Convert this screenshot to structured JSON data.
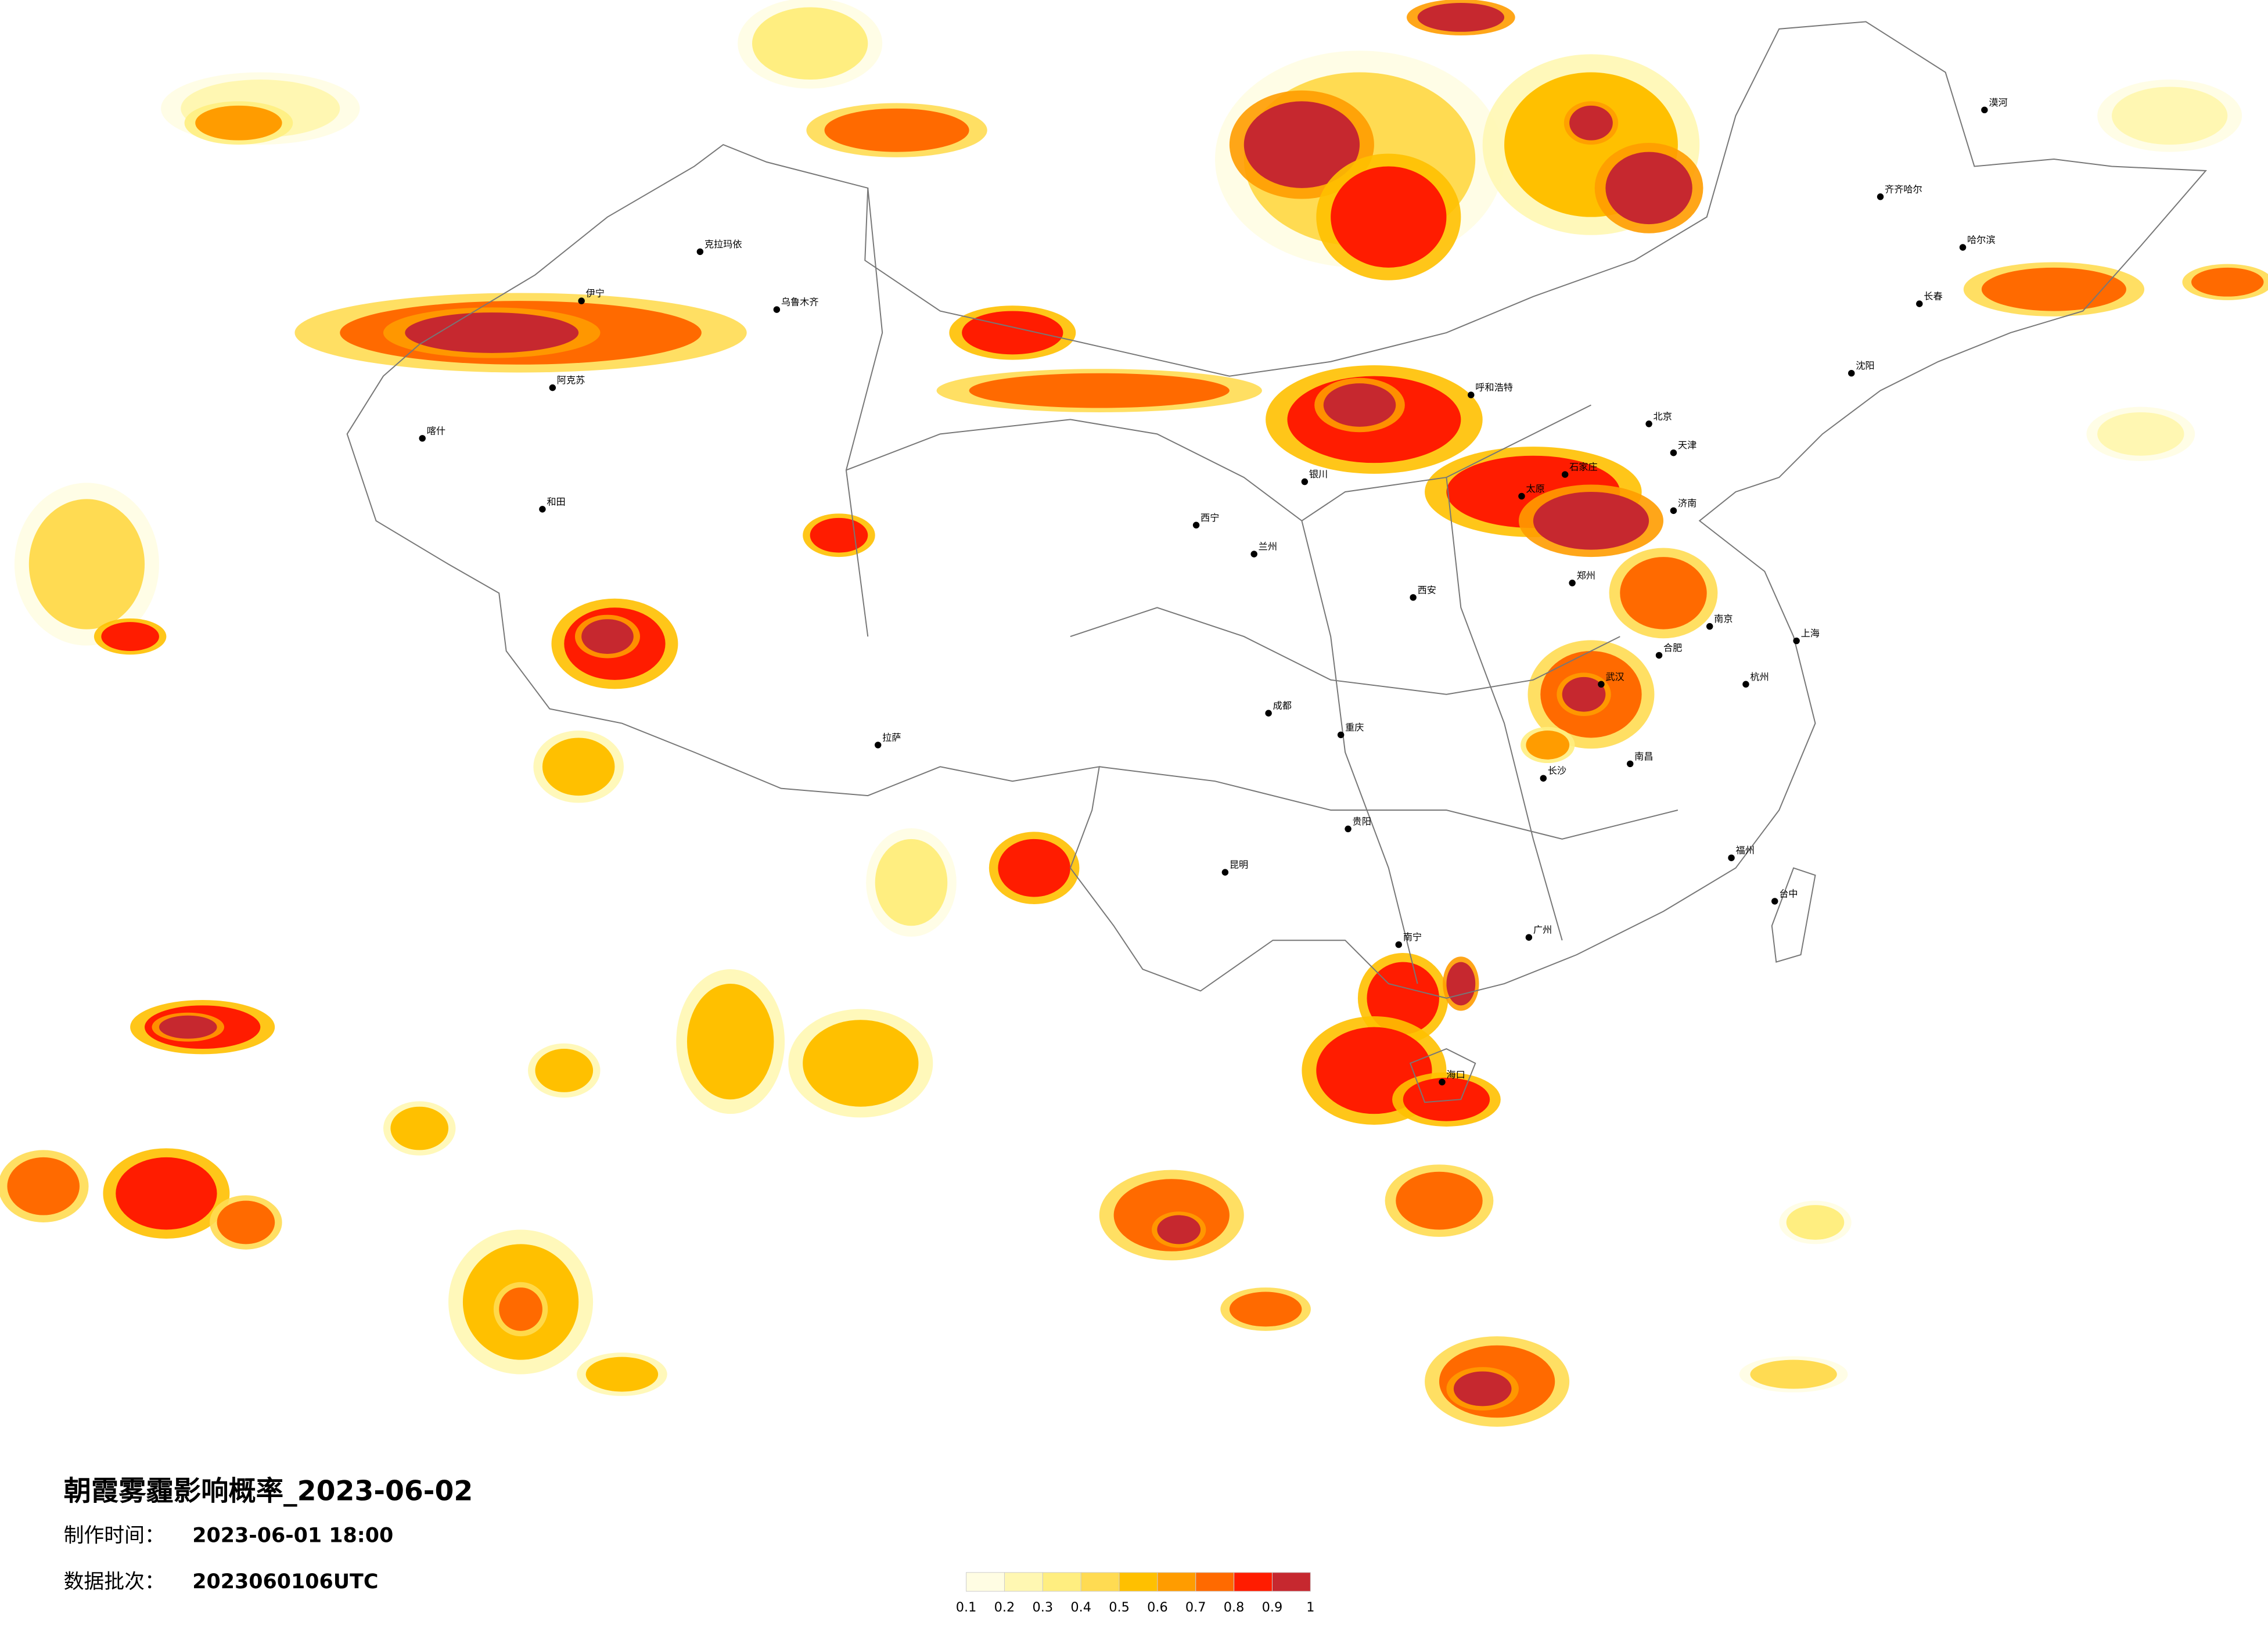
{
  "title": "朝霞雾霾影响概率_2023-06-02",
  "production_time": {
    "label": "制作时间：",
    "value": "2023-06-01 18:00"
  },
  "batch": {
    "label": "数据批次：",
    "value": "2023060106UTC"
  },
  "legend": {
    "colors": [
      "#fffde3",
      "#fff7b2",
      "#ffee80",
      "#ffdb52",
      "#ffc000",
      "#ff9c00",
      "#ff6a00",
      "#ff1c00",
      "#c6282f"
    ],
    "ticks": [
      0.1,
      0.2,
      0.3,
      0.4,
      0.5,
      0.6,
      0.7,
      0.8,
      0.9,
      1
    ]
  },
  "cities": [
    "漠河",
    "齐齐哈尔",
    "哈尔滨",
    "长春",
    "沈阳",
    "克拉玛依",
    "伊宁",
    "乌鲁木齐",
    "阿克苏",
    "喀什",
    "和田",
    "拉萨",
    "西宁",
    "兰州",
    "银川",
    "呼和浩特",
    "北京",
    "天津",
    "石家庄",
    "太原",
    "济南",
    "郑州",
    "西安",
    "成都",
    "重庆",
    "武汉",
    "合肥",
    "南京",
    "上海",
    "杭州",
    "长沙",
    "南昌",
    "福州",
    "贵阳",
    "昆明",
    "南宁",
    "广州",
    "海口",
    "台中"
  ]
}
